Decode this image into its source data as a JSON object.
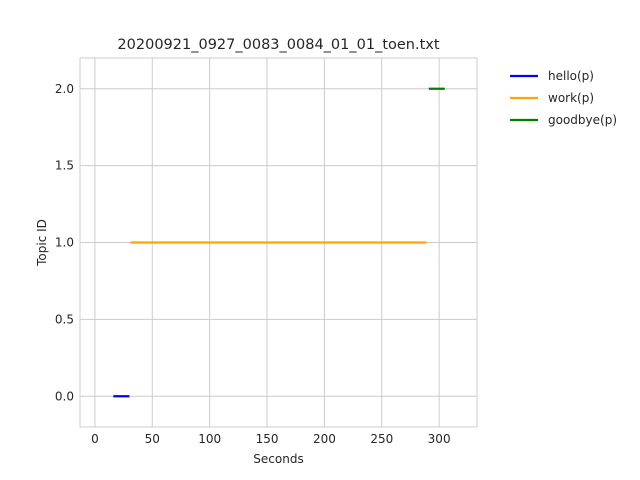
{
  "chart_data": {
    "type": "line",
    "title": "20200921_0927_0083_0084_01_01_toen.txt",
    "xlabel": "Seconds",
    "ylabel": "Topic ID",
    "xlim": [
      -13,
      333
    ],
    "ylim": [
      -0.2,
      2.2
    ],
    "xticks": [
      0,
      50,
      100,
      150,
      200,
      250,
      300
    ],
    "yticks": [
      0.0,
      0.5,
      1.0,
      1.5,
      2.0
    ],
    "xtick_labels": [
      "0",
      "50",
      "100",
      "150",
      "200",
      "250",
      "300"
    ],
    "ytick_labels": [
      "0.0",
      "0.5",
      "1.0",
      "1.5",
      "2.0"
    ],
    "grid": true,
    "legend_position": "outside-right-top",
    "series": [
      {
        "name": "hello(p)",
        "color": "#0000ff",
        "segments": [
          [
            16,
            30,
            0
          ]
        ]
      },
      {
        "name": "work(p)",
        "color": "#ffa500",
        "segments": [
          [
            31,
            289,
            1
          ]
        ]
      },
      {
        "name": "goodbye(p)",
        "color": "#008000",
        "segments": [
          [
            291,
            305,
            2
          ]
        ]
      }
    ]
  }
}
